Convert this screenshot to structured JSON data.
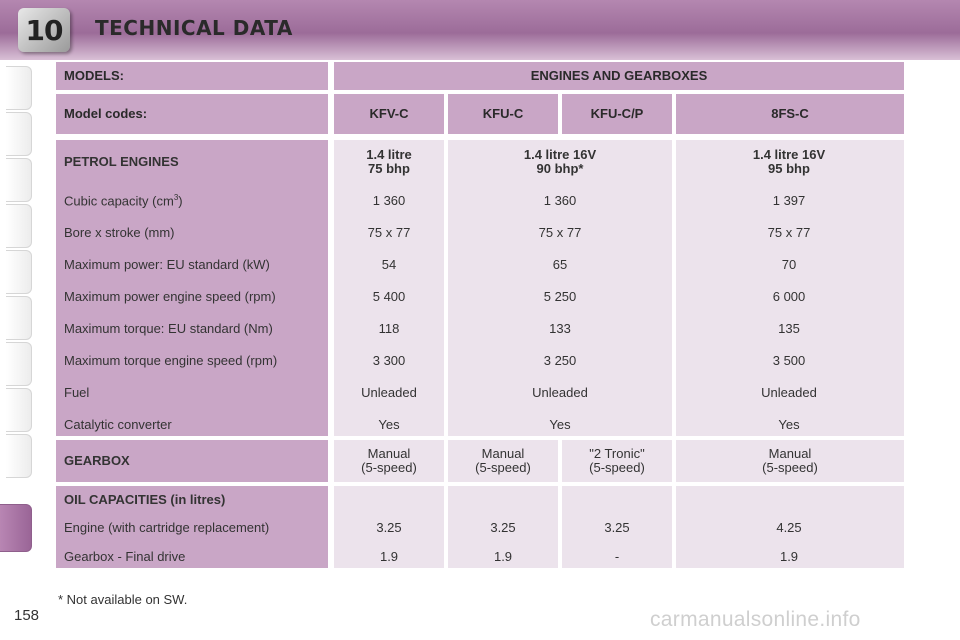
{
  "header": {
    "chapter": "10",
    "title": "TECHNICAL DATA"
  },
  "table": {
    "models_label": "MODELS:",
    "engines_label": "ENGINES AND GEARBOXES",
    "model_codes_label": "Model codes:",
    "codes": [
      "KFV-C",
      "KFU-C",
      "KFU-C/P",
      "8FS-C"
    ],
    "petrol_label": "PETROL ENGINES",
    "engines": [
      {
        "line1": "1.4 litre",
        "line2": "75 bhp"
      },
      {
        "line1": "1.4 litre 16V",
        "line2": "90 bhp*"
      },
      {
        "line1": "1.4 litre 16V",
        "line2": "95 bhp"
      }
    ],
    "spec_rows": [
      {
        "label": "Cubic capacity (cm³)",
        "values": [
          "1 360",
          "1 360",
          "1 397"
        ]
      },
      {
        "label": "Bore x stroke (mm)",
        "values": [
          "75 x 77",
          "75 x 77",
          "75 x 77"
        ]
      },
      {
        "label": "Maximum power: EU standard (kW)",
        "values": [
          "54",
          "65",
          "70"
        ]
      },
      {
        "label": "Maximum power engine speed (rpm)",
        "values": [
          "5 400",
          "5 250",
          "6 000"
        ]
      },
      {
        "label": "Maximum torque: EU standard (Nm)",
        "values": [
          "118",
          "133",
          "135"
        ]
      },
      {
        "label": "Maximum torque engine speed (rpm)",
        "values": [
          "3 300",
          "3 250",
          "3 500"
        ]
      },
      {
        "label": "Fuel",
        "values": [
          "Unleaded",
          "Unleaded",
          "Unleaded"
        ]
      },
      {
        "label": "Catalytic converter",
        "values": [
          "Yes",
          "Yes",
          "Yes"
        ]
      }
    ],
    "gearbox_label": "GEARBOX",
    "gearboxes": [
      {
        "line1": "Manual",
        "line2": "(5-speed)"
      },
      {
        "line1": "Manual",
        "line2": "(5-speed)"
      },
      {
        "line1": "\"2 Tronic\"",
        "line2": "(5-speed)"
      },
      {
        "line1": "Manual",
        "line2": "(5-speed)"
      }
    ],
    "oil_label": "OIL CAPACITIES (in litres)",
    "oil_rows": [
      {
        "label": "Engine (with cartridge replacement)",
        "values": [
          "3.25",
          "3.25",
          "3.25",
          "4.25"
        ]
      },
      {
        "label": "Gearbox - Final drive",
        "values": [
          "1.9",
          "1.9",
          "-",
          "1.9"
        ]
      }
    ]
  },
  "footnote": "* Not available on SW.",
  "page_number": "158",
  "watermark": "carmanualsonline.info"
}
